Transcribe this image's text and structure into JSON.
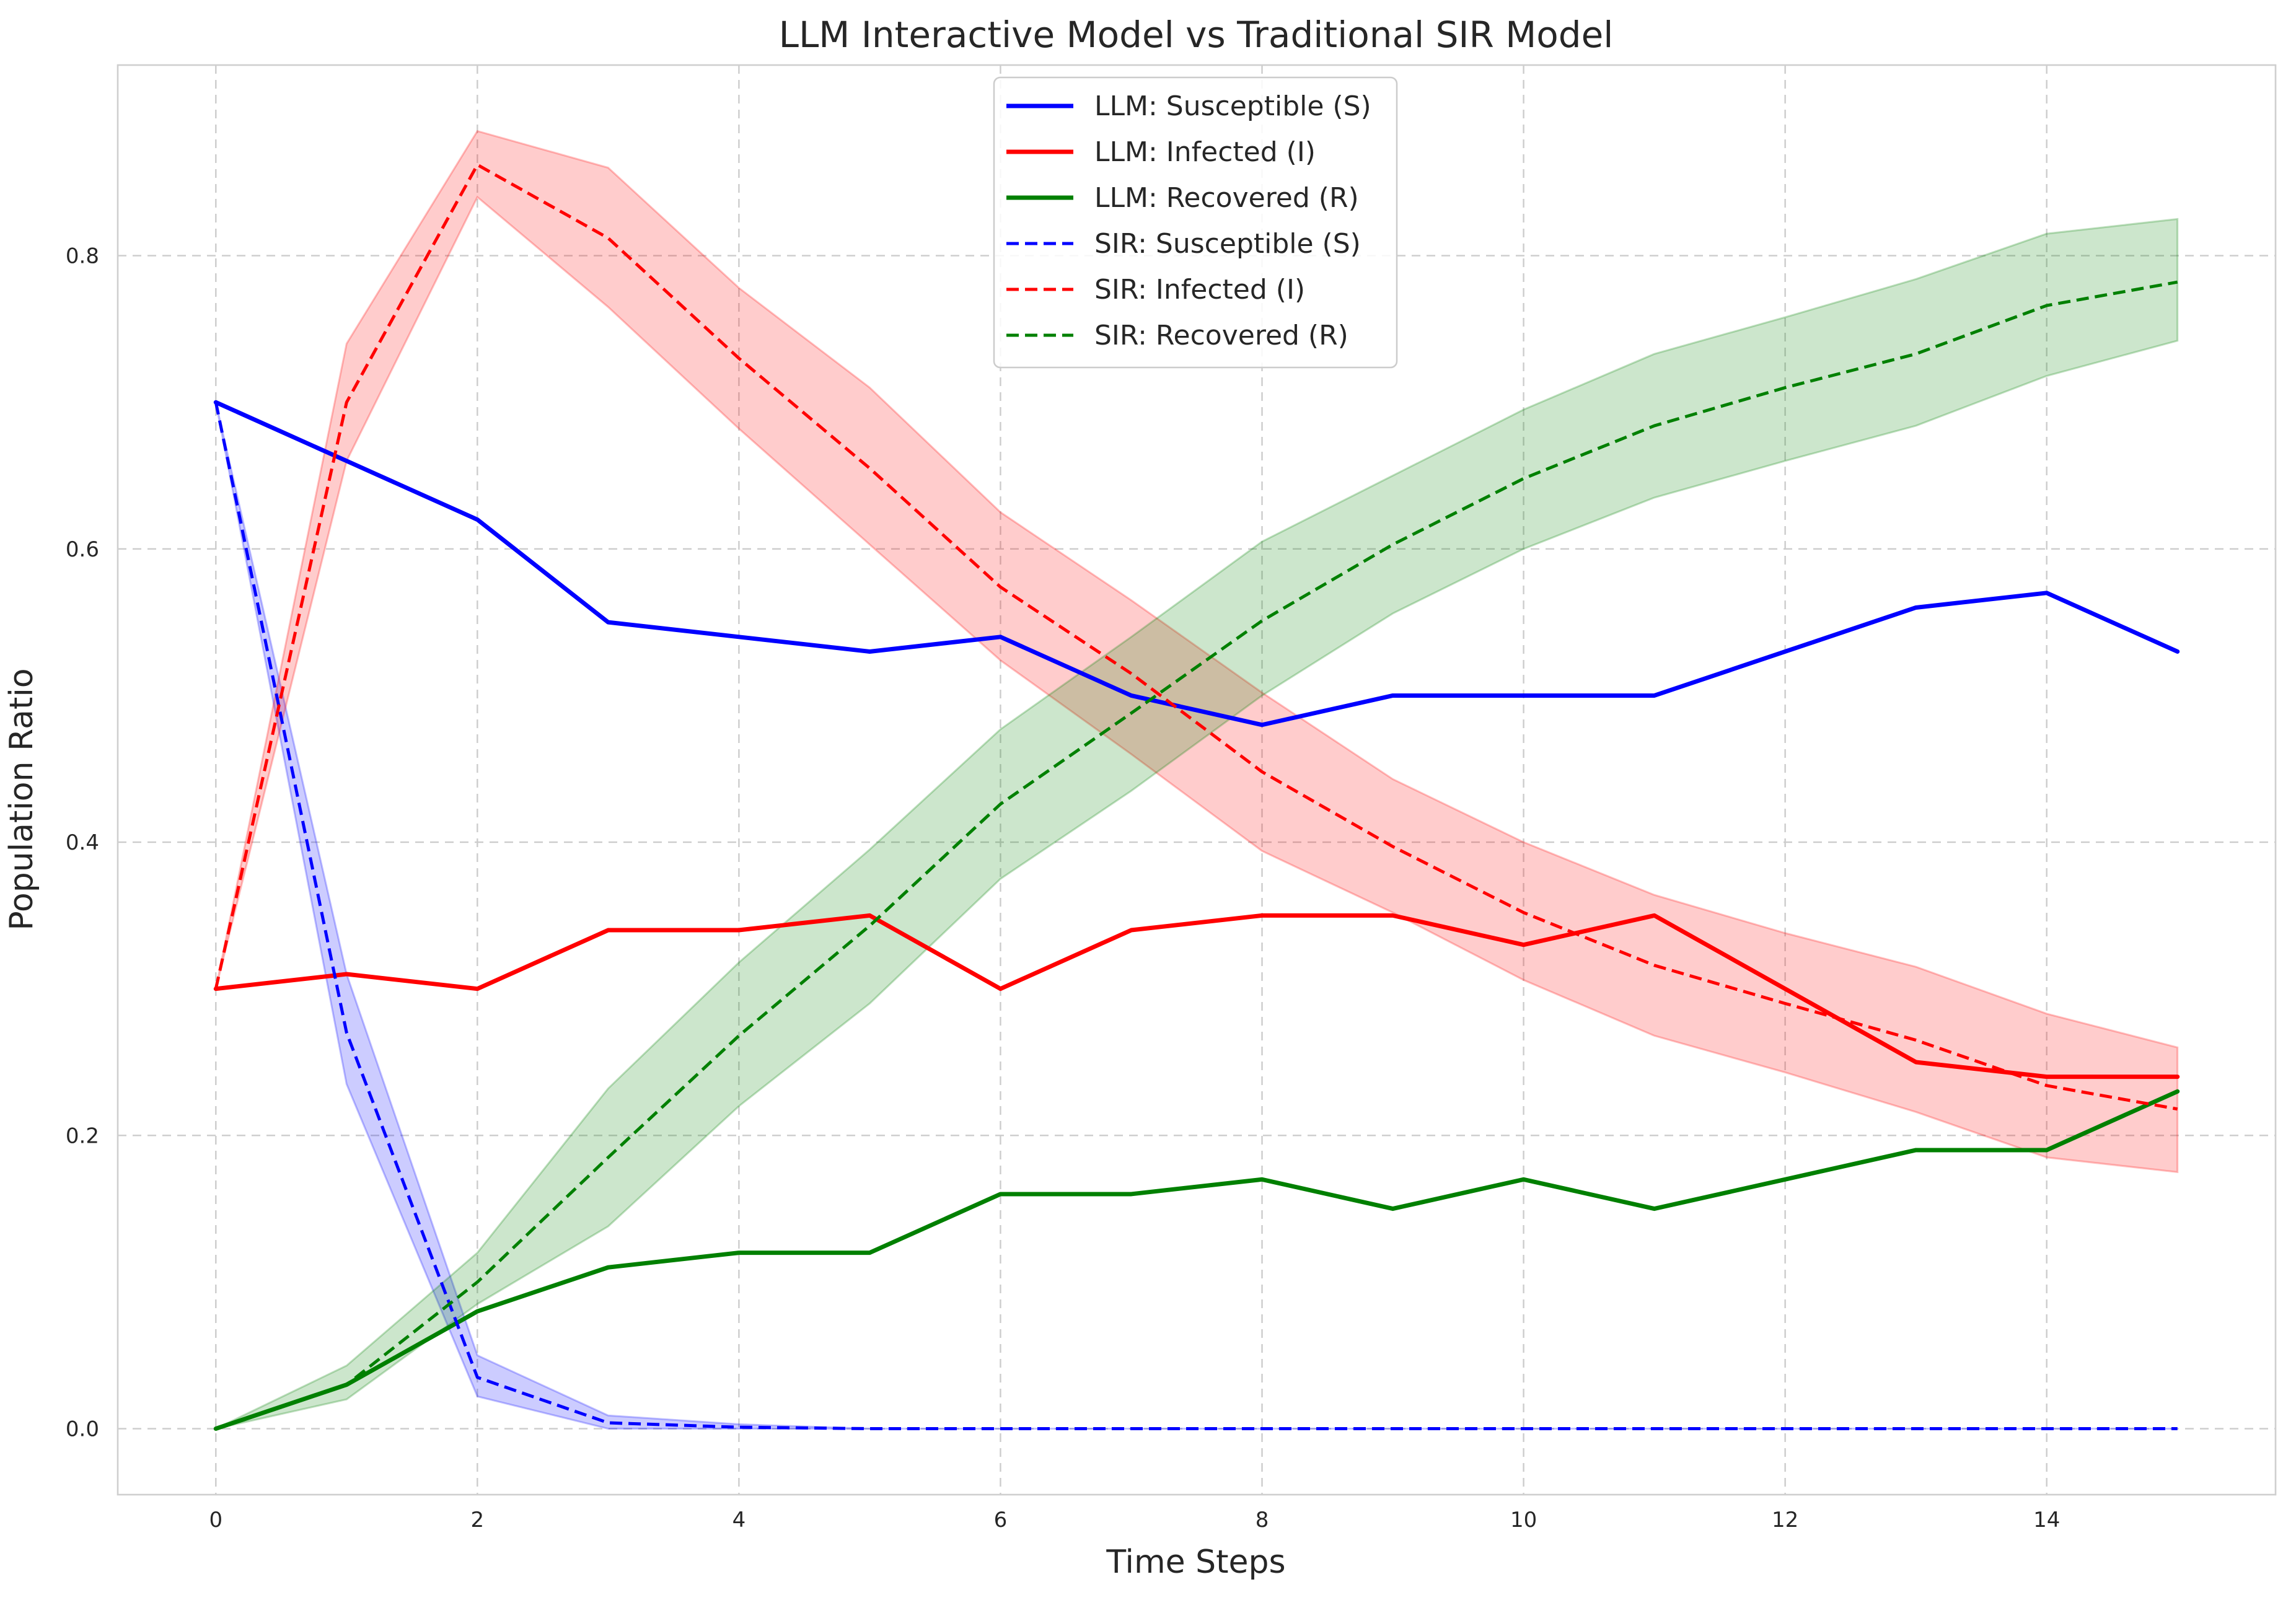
{
  "chart_data": {
    "type": "line",
    "title": "LLM Interactive Model vs Traditional SIR Model",
    "xlabel": "Time Steps",
    "ylabel": "Population Ratio",
    "xlim": [
      -0.75,
      15.75
    ],
    "ylim": [
      -0.045,
      0.93
    ],
    "xticks": [
      0,
      2,
      4,
      6,
      8,
      10,
      12,
      14
    ],
    "yticks": [
      0.0,
      0.2,
      0.4,
      0.6,
      0.8
    ],
    "ytick_labels": [
      "0.0",
      "0.2",
      "0.4",
      "0.6",
      "0.8"
    ],
    "grid": true,
    "legend_position": "top-center",
    "x": [
      0,
      1,
      2,
      3,
      4,
      5,
      6,
      7,
      8,
      9,
      10,
      11,
      12,
      13,
      14,
      15
    ],
    "series": [
      {
        "name": "LLM: Susceptible (S)",
        "color": "#0000ff",
        "style": "solid",
        "values": [
          0.7,
          0.66,
          0.62,
          0.55,
          0.54,
          0.53,
          0.54,
          0.5,
          0.48,
          0.5,
          0.5,
          0.5,
          0.53,
          0.56,
          0.57,
          0.53
        ]
      },
      {
        "name": "LLM: Infected (I)",
        "color": "#ff0000",
        "style": "solid",
        "values": [
          0.3,
          0.31,
          0.3,
          0.34,
          0.34,
          0.35,
          0.3,
          0.34,
          0.35,
          0.35,
          0.33,
          0.35,
          0.3,
          0.25,
          0.24,
          0.24
        ]
      },
      {
        "name": "LLM: Recovered (R)",
        "color": "#008000",
        "style": "solid",
        "values": [
          0.0,
          0.03,
          0.08,
          0.11,
          0.12,
          0.12,
          0.16,
          0.16,
          0.17,
          0.15,
          0.17,
          0.15,
          0.17,
          0.19,
          0.19,
          0.23
        ]
      },
      {
        "name": "SIR: Susceptible (S)",
        "color": "#0000ff",
        "style": "dashed",
        "values": [
          0.7,
          0.27,
          0.035,
          0.004,
          0.001,
          0.0,
          0.0,
          0.0,
          0.0,
          0.0,
          0.0,
          0.0,
          0.0,
          0.0,
          0.0,
          0.0
        ],
        "band_lower": [
          0.7,
          0.235,
          0.022,
          0.0,
          0.0,
          0.0,
          0.0,
          0.0,
          0.0,
          0.0,
          0.0,
          0.0,
          0.0,
          0.0,
          0.0,
          0.0
        ],
        "band_upper": [
          0.7,
          0.31,
          0.05,
          0.009,
          0.003,
          0.0,
          0.0,
          0.0,
          0.0,
          0.0,
          0.0,
          0.0,
          0.0,
          0.0,
          0.0,
          0.0
        ],
        "band_color": "#0000ff"
      },
      {
        "name": "SIR: Infected (I)",
        "color": "#ff0000",
        "style": "dashed",
        "values": [
          0.3,
          0.7,
          0.862,
          0.812,
          0.73,
          0.655,
          0.574,
          0.515,
          0.448,
          0.397,
          0.352,
          0.316,
          0.29,
          0.265,
          0.234,
          0.218
        ],
        "band_lower": [
          0.3,
          0.66,
          0.84,
          0.765,
          0.682,
          0.603,
          0.524,
          0.46,
          0.394,
          0.352,
          0.306,
          0.268,
          0.243,
          0.216,
          0.185,
          0.175
        ],
        "band_upper": [
          0.3,
          0.74,
          0.885,
          0.86,
          0.778,
          0.71,
          0.625,
          0.565,
          0.502,
          0.443,
          0.4,
          0.364,
          0.338,
          0.315,
          0.283,
          0.26
        ],
        "band_color": "#ff0000"
      },
      {
        "name": "SIR: Recovered (R)",
        "color": "#008000",
        "style": "dashed",
        "values": [
          0.0,
          0.03,
          0.1,
          0.185,
          0.268,
          0.343,
          0.426,
          0.488,
          0.551,
          0.603,
          0.648,
          0.684,
          0.71,
          0.733,
          0.766,
          0.782
        ],
        "band_lower": [
          0.0,
          0.02,
          0.085,
          0.138,
          0.22,
          0.29,
          0.375,
          0.435,
          0.5,
          0.556,
          0.6,
          0.635,
          0.66,
          0.684,
          0.718,
          0.742
        ],
        "band_upper": [
          0.0,
          0.043,
          0.12,
          0.232,
          0.318,
          0.395,
          0.477,
          0.54,
          0.605,
          0.65,
          0.695,
          0.733,
          0.758,
          0.784,
          0.815,
          0.825
        ],
        "band_color": "#008000"
      }
    ]
  }
}
